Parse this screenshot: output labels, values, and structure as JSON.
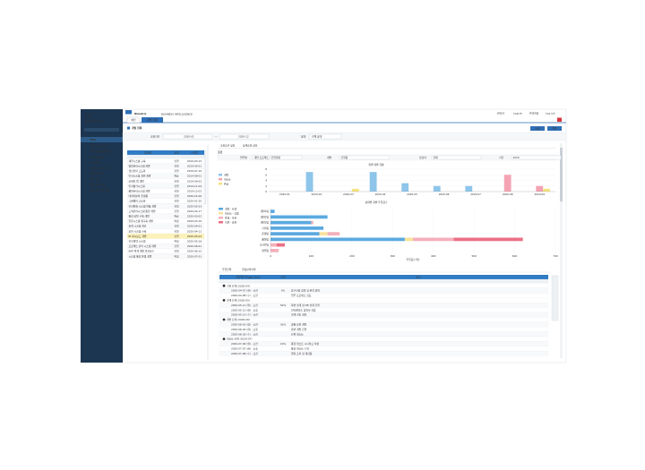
{
  "sidebar": {
    "user": "홍길동",
    "dept": "경영지원팀 관리자",
    "menu_title": "PMS",
    "menu": [
      "개발공통코드관리",
      "사업자별개발현황 조회",
      "프로젝트관리",
      "Task관리",
      "프로젝트 일정 관리",
      "투입인력관리",
      "개발 현황",
      "개발 일정 현황",
      "개발자별 투입 현황"
    ]
  },
  "header": {
    "logo": "Bimatrix",
    "logo_sub": "BUSINESS INTELLIGENCE",
    "right": [
      "관리자",
      "Logout",
      "환경설정",
      "Log out"
    ]
  },
  "tabs": [
    "메인",
    "개발 현황"
  ],
  "page_title": "개발 현황",
  "buttons": [
    "조회",
    "엑셀"
  ],
  "filter": {
    "period_label": "조회기간",
    "from": "2020-01",
    "sep": "~",
    "to": "2020-12",
    "status_label": "상태",
    "status": "전체 상태"
  },
  "list": {
    "columns": [
      "성과명",
      "상태",
      "시작일"
    ],
    "rows": [
      [
        "재무시스템 구축",
        "진행",
        "2019-03-15"
      ],
      [
        "영업관리시스템 개발",
        "진행",
        "2019-05-01"
      ],
      [
        "생산관리 고도화",
        "진행",
        "2019-07-10"
      ],
      [
        "인사시스템 개편 개발",
        "완료",
        "2019-08-01"
      ],
      [
        "모바일 앱 개발",
        "진행",
        "2019-09-02"
      ],
      [
        "인사평가시스템",
        "진행",
        "2019-11-04"
      ],
      [
        "품질관리시스템 개발",
        "진행",
        "2019-12-02"
      ],
      [
        "데이터분석 플랫폼",
        "진행",
        "2020-01-06"
      ],
      [
        "그룹웨어 고도화",
        "진행",
        "2020-01-20"
      ],
      [
        "전자결재 시스템 연동 개발",
        "진행",
        "2020-02-03"
      ],
      [
        "고객관리시스템 통합 개발",
        "진행",
        "2020-02-17"
      ],
      [
        "통합 포털 구축 개발",
        "완료",
        "2020-03-02"
      ],
      [
        "물류시스템 재구축 개발",
        "확정",
        "2020-03-16"
      ],
      [
        "회계 시스템 개선",
        "진행",
        "2020-04-01"
      ],
      [
        "보안 시스템 구축",
        "진행",
        "2020-04-13"
      ],
      [
        "BI 대시보드 개발",
        "진행",
        "2020-05-04"
      ],
      [
        "전자계약 시스템",
        "확정",
        "2020-05-18"
      ],
      [
        "프로젝트 관리 시스템 개발",
        "진행",
        "2020-06-01"
      ],
      [
        "ERP 연계 개발 유지보수",
        "진행",
        "2020-06-15"
      ],
      [
        "시스템 통합 운영 개발",
        "확정",
        "2020-07-01"
      ]
    ]
  },
  "sub_tabs": [
    "조회조건 정보",
    "상세조회 정보"
  ],
  "section_label": "조건",
  "conditions": [
    {
      "label": "업무명",
      "value": "개발 프로젝트 / 진행현황"
    },
    {
      "label": "개발",
      "value": "진행중"
    },
    {
      "label": "담당자",
      "value": "전체"
    },
    {
      "label": "기간",
      "value": "2020"
    }
  ],
  "bar_chart": {
    "title": "월별 개발 현황",
    "categories": [
      "2020-01",
      "2020-02",
      "2020-03",
      "2020-04",
      "2020-05",
      "2020-06",
      "2020-07",
      "2020-08",
      "2020-09"
    ],
    "series": [
      {
        "name": "개발",
        "color": "#8ec5ea",
        "values": [
          0,
          7,
          0,
          7,
          3,
          2,
          2,
          0,
          0
        ]
      },
      {
        "name": "테스트",
        "color": "#f4a3b4",
        "values": [
          0,
          0,
          0,
          0,
          0,
          0,
          0,
          6,
          2
        ]
      },
      {
        "name": "완료",
        "color": "#f5e37e",
        "values": [
          0,
          0,
          1,
          0,
          0,
          0,
          0,
          0,
          1
        ]
      }
    ],
    "ylim": [
      0,
      8
    ],
    "yticks": [
      0,
      2,
      4,
      6,
      8
    ],
    "grid": true
  },
  "hbar_chart": {
    "title": "상태별 개발 투입공수",
    "x_label": "투입공수(일)",
    "categories": [
      "개발1팀",
      "개발2팀",
      "개발3팀",
      "기획팀",
      "운영팀",
      "품질팀",
      "디자인팀",
      "영업팀"
    ],
    "series": [
      {
        "name": "개발 - 진행",
        "color": "#5ba9e0",
        "values": [
          10,
          140,
          100,
          130,
          120,
          330,
          0,
          0
        ]
      },
      {
        "name": "테스트 - 검증",
        "color": "#f7e39a",
        "values": [
          0,
          0,
          0,
          0,
          20,
          20,
          0,
          0
        ]
      },
      {
        "name": "운영 - 이관",
        "color": "#f4b0bc",
        "values": [
          0,
          0,
          5,
          0,
          30,
          100,
          15,
          20
        ]
      },
      {
        "name": "지연 - 보완",
        "color": "#ec6f85",
        "values": [
          0,
          0,
          0,
          0,
          0,
          170,
          20,
          0
        ]
      }
    ],
    "xlim": [
      0,
      700
    ],
    "xticks": [
      0,
      100,
      200,
      300,
      400,
      500,
      600,
      700
    ],
    "grid": true
  },
  "bottom_tabs": [
    "투입인력",
    "일정관리이력"
  ],
  "tree": {
    "columns": [
      "업무명 (Trigger Row)",
      "진척",
      "비고"
    ],
    "groups": [
      {
        "title": "기획 단계 (2020-04)",
        "items": [
          {
            "name": "2020-04-07 (화) - 오전",
            "progress": "0%",
            "note": "요구사항 정의 및 분석 회의"
          },
          {
            "name": "2020-04-08 (수) - 오전",
            "note": "업무 프로세스 검토"
          }
        ]
      },
      {
        "title": "설계 단계 (2020-05)",
        "items": [
          {
            "name": "2020-05-11 (월) - 오전",
            "progress": "50%",
            "note": "화면 설계 및 DB 설계 진행"
          },
          {
            "name": "2020-05-12 (화) - 오후",
            "note": "인터페이스 정의서 작성"
          },
          {
            "name": "2020-05-13 (수) - 오전",
            "note": "설계 검토 회의"
          }
        ]
      },
      {
        "title": "개발 단계 (2020-06)",
        "items": [
          {
            "name": "2020-06-01 (월) - 오전",
            "progress": "30%",
            "note": "공통 모듈 개발"
          },
          {
            "name": "2020-06-02 (화) - 오후",
            "note": "화면 개발 진행"
          },
          {
            "name": "2020-06-03 (수) - 오전",
            "note": "단위 테스트"
          }
        ]
      },
      {
        "title": "테스트 단계 (2020-07)",
        "items": [
          {
            "name": "2020-07-06 (월) - 오전",
            "progress": "10%",
            "note": "통합 테스트 시나리오 작성"
          },
          {
            "name": "2020-07-07 (화) - 오후",
            "note": "통합 테스트 수행"
          },
          {
            "name": "2020-07-08 (수) - 오전",
            "note": "결함 조치 및 재검증"
          }
        ]
      }
    ]
  }
}
